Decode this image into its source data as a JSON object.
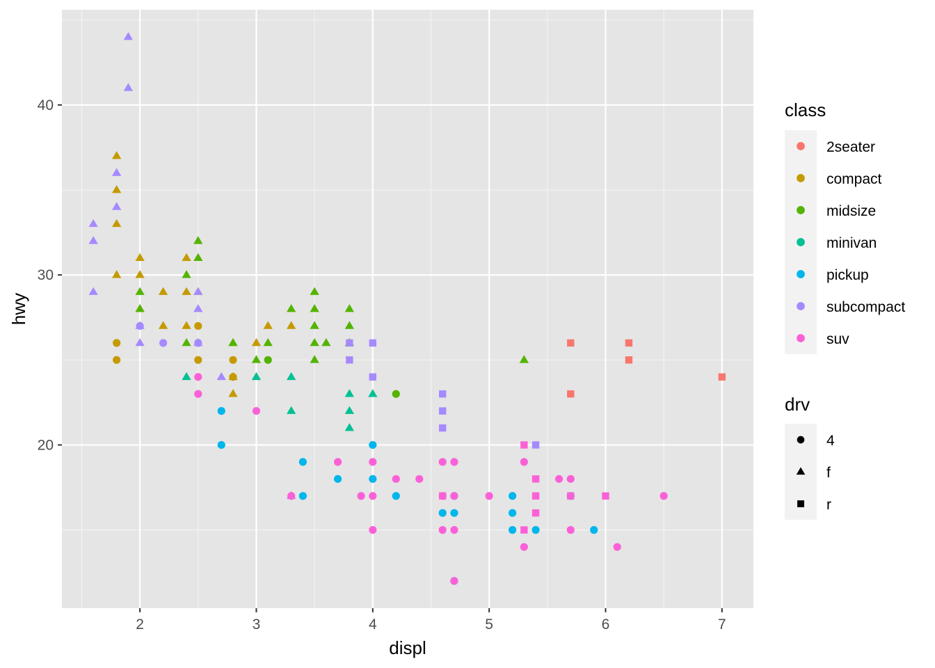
{
  "chart_data": {
    "type": "scatter",
    "title": "",
    "xlabel": "displ",
    "ylabel": "hwy",
    "xlim": [
      1.33,
      7.27
    ],
    "ylim": [
      10.4,
      45.6
    ],
    "x_ticks": [
      2,
      3,
      4,
      5,
      6,
      7
    ],
    "y_ticks": [
      20,
      30,
      40
    ],
    "x_tick_labels": [
      "2",
      "3",
      "4",
      "5",
      "6",
      "7"
    ],
    "y_tick_labels": [
      "20",
      "30",
      "40"
    ],
    "grid": true,
    "panel_background": "#e5e5e5",
    "legend_position": "right",
    "legends": [
      {
        "title": "class",
        "aesthetic": "color",
        "entries": [
          {
            "label": "2seater",
            "color": "#f8766d"
          },
          {
            "label": "compact",
            "color": "#c49a00"
          },
          {
            "label": "midsize",
            "color": "#53b400"
          },
          {
            "label": "minivan",
            "color": "#00c094"
          },
          {
            "label": "pickup",
            "color": "#00b6eb"
          },
          {
            "label": "subcompact",
            "color": "#a58aff"
          },
          {
            "label": "suv",
            "color": "#fb61d7"
          }
        ]
      },
      {
        "title": "drv",
        "aesthetic": "shape",
        "entries": [
          {
            "label": "4",
            "shape": "circle"
          },
          {
            "label": "f",
            "shape": "triangle"
          },
          {
            "label": "r",
            "shape": "square"
          }
        ]
      }
    ],
    "points": [
      {
        "x": 5.7,
        "y": 26,
        "class": "2seater",
        "drv": "r"
      },
      {
        "x": 6.2,
        "y": 26,
        "class": "2seater",
        "drv": "r"
      },
      {
        "x": 6.2,
        "y": 25,
        "class": "2seater",
        "drv": "r"
      },
      {
        "x": 5.7,
        "y": 23,
        "class": "2seater",
        "drv": "r"
      },
      {
        "x": 7.0,
        "y": 24,
        "class": "2seater",
        "drv": "r"
      },
      {
        "x": 1.8,
        "y": 37,
        "class": "compact",
        "drv": "f"
      },
      {
        "x": 1.8,
        "y": 35,
        "class": "compact",
        "drv": "f"
      },
      {
        "x": 1.8,
        "y": 33,
        "class": "compact",
        "drv": "f"
      },
      {
        "x": 1.8,
        "y": 30,
        "class": "compact",
        "drv": "f"
      },
      {
        "x": 2.0,
        "y": 31,
        "class": "compact",
        "drv": "f"
      },
      {
        "x": 2.0,
        "y": 30,
        "class": "compact",
        "drv": "f"
      },
      {
        "x": 2.0,
        "y": 28,
        "class": "compact",
        "drv": "f"
      },
      {
        "x": 2.2,
        "y": 29,
        "class": "compact",
        "drv": "f"
      },
      {
        "x": 2.2,
        "y": 27,
        "class": "compact",
        "drv": "f"
      },
      {
        "x": 2.4,
        "y": 31,
        "class": "compact",
        "drv": "f"
      },
      {
        "x": 2.4,
        "y": 29,
        "class": "compact",
        "drv": "f"
      },
      {
        "x": 2.4,
        "y": 27,
        "class": "compact",
        "drv": "f"
      },
      {
        "x": 2.5,
        "y": 29,
        "class": "compact",
        "drv": "f"
      },
      {
        "x": 2.8,
        "y": 26,
        "class": "compact",
        "drv": "f"
      },
      {
        "x": 2.8,
        "y": 24,
        "class": "compact",
        "drv": "f"
      },
      {
        "x": 2.8,
        "y": 23,
        "class": "compact",
        "drv": "f"
      },
      {
        "x": 3.0,
        "y": 26,
        "class": "compact",
        "drv": "f"
      },
      {
        "x": 3.1,
        "y": 27,
        "class": "compact",
        "drv": "f"
      },
      {
        "x": 3.3,
        "y": 27,
        "class": "compact",
        "drv": "f"
      },
      {
        "x": 1.8,
        "y": 26,
        "class": "compact",
        "drv": "4"
      },
      {
        "x": 1.8,
        "y": 25,
        "class": "compact",
        "drv": "4"
      },
      {
        "x": 2.5,
        "y": 27,
        "class": "compact",
        "drv": "4"
      },
      {
        "x": 2.5,
        "y": 25,
        "class": "compact",
        "drv": "4"
      },
      {
        "x": 2.8,
        "y": 25,
        "class": "compact",
        "drv": "4"
      },
      {
        "x": 2.8,
        "y": 24,
        "class": "compact",
        "drv": "4"
      },
      {
        "x": 2.0,
        "y": 29,
        "class": "midsize",
        "drv": "f"
      },
      {
        "x": 2.0,
        "y": 28,
        "class": "midsize",
        "drv": "f"
      },
      {
        "x": 2.4,
        "y": 30,
        "class": "midsize",
        "drv": "f"
      },
      {
        "x": 2.4,
        "y": 26,
        "class": "midsize",
        "drv": "f"
      },
      {
        "x": 2.5,
        "y": 32,
        "class": "midsize",
        "drv": "f"
      },
      {
        "x": 2.5,
        "y": 31,
        "class": "midsize",
        "drv": "f"
      },
      {
        "x": 2.8,
        "y": 26,
        "class": "midsize",
        "drv": "f"
      },
      {
        "x": 3.0,
        "y": 25,
        "class": "midsize",
        "drv": "f"
      },
      {
        "x": 3.1,
        "y": 26,
        "class": "midsize",
        "drv": "f"
      },
      {
        "x": 3.3,
        "y": 28,
        "class": "midsize",
        "drv": "f"
      },
      {
        "x": 3.5,
        "y": 29,
        "class": "midsize",
        "drv": "f"
      },
      {
        "x": 3.5,
        "y": 28,
        "class": "midsize",
        "drv": "f"
      },
      {
        "x": 3.5,
        "y": 27,
        "class": "midsize",
        "drv": "f"
      },
      {
        "x": 3.5,
        "y": 26,
        "class": "midsize",
        "drv": "f"
      },
      {
        "x": 3.5,
        "y": 25,
        "class": "midsize",
        "drv": "f"
      },
      {
        "x": 3.6,
        "y": 26,
        "class": "midsize",
        "drv": "f"
      },
      {
        "x": 3.8,
        "y": 28,
        "class": "midsize",
        "drv": "f"
      },
      {
        "x": 3.8,
        "y": 27,
        "class": "midsize",
        "drv": "f"
      },
      {
        "x": 3.8,
        "y": 26,
        "class": "midsize",
        "drv": "f"
      },
      {
        "x": 5.3,
        "y": 25,
        "class": "midsize",
        "drv": "f"
      },
      {
        "x": 3.1,
        "y": 25,
        "class": "midsize",
        "drv": "4"
      },
      {
        "x": 4.2,
        "y": 23,
        "class": "midsize",
        "drv": "4"
      },
      {
        "x": 2.4,
        "y": 24,
        "class": "minivan",
        "drv": "f"
      },
      {
        "x": 3.0,
        "y": 24,
        "class": "minivan",
        "drv": "f"
      },
      {
        "x": 3.3,
        "y": 24,
        "class": "minivan",
        "drv": "f"
      },
      {
        "x": 3.3,
        "y": 22,
        "class": "minivan",
        "drv": "f"
      },
      {
        "x": 3.8,
        "y": 23,
        "class": "minivan",
        "drv": "f"
      },
      {
        "x": 3.8,
        "y": 22,
        "class": "minivan",
        "drv": "f"
      },
      {
        "x": 3.8,
        "y": 21,
        "class": "minivan",
        "drv": "f"
      },
      {
        "x": 4.0,
        "y": 23,
        "class": "minivan",
        "drv": "f"
      },
      {
        "x": 2.7,
        "y": 22,
        "class": "pickup",
        "drv": "4"
      },
      {
        "x": 2.7,
        "y": 20,
        "class": "pickup",
        "drv": "4"
      },
      {
        "x": 3.4,
        "y": 19,
        "class": "pickup",
        "drv": "4"
      },
      {
        "x": 3.4,
        "y": 17,
        "class": "pickup",
        "drv": "4"
      },
      {
        "x": 3.7,
        "y": 18,
        "class": "pickup",
        "drv": "4"
      },
      {
        "x": 4.0,
        "y": 20,
        "class": "pickup",
        "drv": "4"
      },
      {
        "x": 4.0,
        "y": 18,
        "class": "pickup",
        "drv": "4"
      },
      {
        "x": 4.2,
        "y": 17,
        "class": "pickup",
        "drv": "4"
      },
      {
        "x": 4.6,
        "y": 16,
        "class": "pickup",
        "drv": "4"
      },
      {
        "x": 4.7,
        "y": 17,
        "class": "pickup",
        "drv": "4"
      },
      {
        "x": 4.7,
        "y": 16,
        "class": "pickup",
        "drv": "4"
      },
      {
        "x": 4.7,
        "y": 12,
        "class": "pickup",
        "drv": "4"
      },
      {
        "x": 5.2,
        "y": 17,
        "class": "pickup",
        "drv": "4"
      },
      {
        "x": 5.2,
        "y": 16,
        "class": "pickup",
        "drv": "4"
      },
      {
        "x": 5.2,
        "y": 15,
        "class": "pickup",
        "drv": "4"
      },
      {
        "x": 5.4,
        "y": 15,
        "class": "pickup",
        "drv": "4"
      },
      {
        "x": 5.7,
        "y": 17,
        "class": "pickup",
        "drv": "4"
      },
      {
        "x": 5.9,
        "y": 15,
        "class": "pickup",
        "drv": "4"
      },
      {
        "x": 1.6,
        "y": 33,
        "class": "subcompact",
        "drv": "f"
      },
      {
        "x": 1.6,
        "y": 32,
        "class": "subcompact",
        "drv": "f"
      },
      {
        "x": 1.6,
        "y": 29,
        "class": "subcompact",
        "drv": "f"
      },
      {
        "x": 1.8,
        "y": 36,
        "class": "subcompact",
        "drv": "f"
      },
      {
        "x": 1.8,
        "y": 34,
        "class": "subcompact",
        "drv": "f"
      },
      {
        "x": 1.9,
        "y": 44,
        "class": "subcompact",
        "drv": "f"
      },
      {
        "x": 1.9,
        "y": 41,
        "class": "subcompact",
        "drv": "f"
      },
      {
        "x": 2.0,
        "y": 27,
        "class": "subcompact",
        "drv": "f"
      },
      {
        "x": 2.0,
        "y": 26,
        "class": "subcompact",
        "drv": "f"
      },
      {
        "x": 2.5,
        "y": 29,
        "class": "subcompact",
        "drv": "f"
      },
      {
        "x": 2.5,
        "y": 28,
        "class": "subcompact",
        "drv": "f"
      },
      {
        "x": 2.5,
        "y": 26,
        "class": "subcompact",
        "drv": "f"
      },
      {
        "x": 2.7,
        "y": 24,
        "class": "subcompact",
        "drv": "f"
      },
      {
        "x": 3.3,
        "y": 17,
        "class": "subcompact",
        "drv": "f"
      },
      {
        "x": 2.2,
        "y": 26,
        "class": "subcompact",
        "drv": "4"
      },
      {
        "x": 2.0,
        "y": 27,
        "class": "subcompact",
        "drv": "4"
      },
      {
        "x": 2.5,
        "y": 26,
        "class": "subcompact",
        "drv": "4"
      },
      {
        "x": 3.8,
        "y": 26,
        "class": "subcompact",
        "drv": "r"
      },
      {
        "x": 3.8,
        "y": 25,
        "class": "subcompact",
        "drv": "r"
      },
      {
        "x": 4.0,
        "y": 26,
        "class": "subcompact",
        "drv": "r"
      },
      {
        "x": 4.0,
        "y": 24,
        "class": "subcompact",
        "drv": "r"
      },
      {
        "x": 4.6,
        "y": 23,
        "class": "subcompact",
        "drv": "r"
      },
      {
        "x": 4.6,
        "y": 22,
        "class": "subcompact",
        "drv": "r"
      },
      {
        "x": 4.6,
        "y": 21,
        "class": "subcompact",
        "drv": "r"
      },
      {
        "x": 5.4,
        "y": 20,
        "class": "subcompact",
        "drv": "r"
      },
      {
        "x": 2.5,
        "y": 24,
        "class": "suv",
        "drv": "4"
      },
      {
        "x": 2.5,
        "y": 23,
        "class": "suv",
        "drv": "4"
      },
      {
        "x": 3.0,
        "y": 22,
        "class": "suv",
        "drv": "4"
      },
      {
        "x": 3.3,
        "y": 17,
        "class": "suv",
        "drv": "4"
      },
      {
        "x": 3.7,
        "y": 19,
        "class": "suv",
        "drv": "4"
      },
      {
        "x": 3.9,
        "y": 17,
        "class": "suv",
        "drv": "4"
      },
      {
        "x": 4.0,
        "y": 19,
        "class": "suv",
        "drv": "4"
      },
      {
        "x": 4.0,
        "y": 17,
        "class": "suv",
        "drv": "4"
      },
      {
        "x": 4.0,
        "y": 15,
        "class": "suv",
        "drv": "4"
      },
      {
        "x": 4.2,
        "y": 18,
        "class": "suv",
        "drv": "4"
      },
      {
        "x": 4.4,
        "y": 18,
        "class": "suv",
        "drv": "4"
      },
      {
        "x": 4.6,
        "y": 19,
        "class": "suv",
        "drv": "4"
      },
      {
        "x": 4.6,
        "y": 17,
        "class": "suv",
        "drv": "4"
      },
      {
        "x": 4.6,
        "y": 15,
        "class": "suv",
        "drv": "4"
      },
      {
        "x": 4.7,
        "y": 19,
        "class": "suv",
        "drv": "4"
      },
      {
        "x": 4.7,
        "y": 17,
        "class": "suv",
        "drv": "4"
      },
      {
        "x": 4.7,
        "y": 15,
        "class": "suv",
        "drv": "4"
      },
      {
        "x": 4.7,
        "y": 12,
        "class": "suv",
        "drv": "4"
      },
      {
        "x": 5.0,
        "y": 17,
        "class": "suv",
        "drv": "4"
      },
      {
        "x": 5.3,
        "y": 19,
        "class": "suv",
        "drv": "4"
      },
      {
        "x": 5.3,
        "y": 14,
        "class": "suv",
        "drv": "4"
      },
      {
        "x": 5.6,
        "y": 18,
        "class": "suv",
        "drv": "4"
      },
      {
        "x": 5.7,
        "y": 18,
        "class": "suv",
        "drv": "4"
      },
      {
        "x": 5.7,
        "y": 15,
        "class": "suv",
        "drv": "4"
      },
      {
        "x": 6.1,
        "y": 14,
        "class": "suv",
        "drv": "4"
      },
      {
        "x": 6.5,
        "y": 17,
        "class": "suv",
        "drv": "4"
      },
      {
        "x": 4.6,
        "y": 17,
        "class": "suv",
        "drv": "r"
      },
      {
        "x": 5.3,
        "y": 20,
        "class": "suv",
        "drv": "r"
      },
      {
        "x": 5.3,
        "y": 15,
        "class": "suv",
        "drv": "r"
      },
      {
        "x": 5.4,
        "y": 18,
        "class": "suv",
        "drv": "r"
      },
      {
        "x": 5.4,
        "y": 17,
        "class": "suv",
        "drv": "r"
      },
      {
        "x": 5.4,
        "y": 16,
        "class": "suv",
        "drv": "r"
      },
      {
        "x": 5.7,
        "y": 17,
        "class": "suv",
        "drv": "r"
      },
      {
        "x": 6.0,
        "y": 17,
        "class": "suv",
        "drv": "r"
      }
    ]
  }
}
